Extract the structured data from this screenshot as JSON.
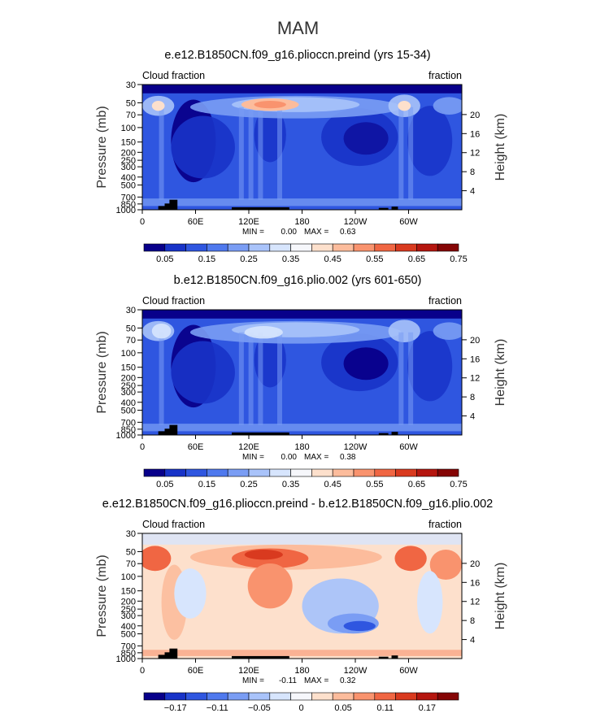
{
  "page_title": "MAM",
  "chart_data": [
    {
      "type": "heatmap",
      "title": "e.e12.B1850CN.f09_g16.plioccn.preind (yrs 15-34)",
      "left_label": "Cloud fraction",
      "right_label": "fraction",
      "xlabel": "",
      "ylabel": "Pressure (mb)",
      "ylabel_right": "Height (km)",
      "x_ticks": [
        "0",
        "60E",
        "120E",
        "180",
        "120W",
        "60W"
      ],
      "y_ticks": [
        "30",
        "50",
        "70",
        "100",
        "150",
        "200",
        "250",
        "300",
        "400",
        "500",
        "700",
        "850",
        "1000"
      ],
      "height_ticks": [
        "20",
        "16",
        "12",
        "8",
        "4"
      ],
      "stats": {
        "min_label": "MIN =",
        "min": "0.00",
        "max_label": "MAX =",
        "max": "0.63"
      },
      "colorbar_labels": [
        "0.05",
        "0.15",
        "0.25",
        "0.35",
        "0.45",
        "0.55",
        "0.65",
        "0.75"
      ],
      "colorbar_colors": [
        "#08008a",
        "#1833c8",
        "#2f56e0",
        "#4f79ee",
        "#7a9df4",
        "#a9c3fa",
        "#d7e5fd",
        "#f6f7fb",
        "#fde0cc",
        "#fcbc9c",
        "#f9936e",
        "#f06643",
        "#d93a1f",
        "#b5160f",
        "#850505"
      ]
    },
    {
      "type": "heatmap",
      "title": "b.e12.B1850CN.f09_g16.plio.002 (yrs 601-650)",
      "left_label": "Cloud fraction",
      "right_label": "fraction",
      "xlabel": "",
      "ylabel": "Pressure (mb)",
      "ylabel_right": "Height (km)",
      "x_ticks": [
        "0",
        "60E",
        "120E",
        "180",
        "120W",
        "60W"
      ],
      "y_ticks": [
        "30",
        "50",
        "70",
        "100",
        "150",
        "200",
        "250",
        "300",
        "400",
        "500",
        "700",
        "850",
        "1000"
      ],
      "height_ticks": [
        "20",
        "16",
        "12",
        "8",
        "4"
      ],
      "stats": {
        "min_label": "MIN =",
        "min": "0.00",
        "max_label": "MAX =",
        "max": "0.38"
      },
      "colorbar_labels": [
        "0.05",
        "0.15",
        "0.25",
        "0.35",
        "0.45",
        "0.55",
        "0.65",
        "0.75"
      ],
      "colorbar_colors": [
        "#08008a",
        "#1833c8",
        "#2f56e0",
        "#4f79ee",
        "#7a9df4",
        "#a9c3fa",
        "#d7e5fd",
        "#f6f7fb",
        "#fde0cc",
        "#fcbc9c",
        "#f9936e",
        "#f06643",
        "#d93a1f",
        "#b5160f",
        "#850505"
      ]
    },
    {
      "type": "heatmap",
      "title": "e.e12.B1850CN.f09_g16.plioccn.preind - b.e12.B1850CN.f09_g16.plio.002",
      "left_label": "Cloud fraction",
      "right_label": "fraction",
      "xlabel": "",
      "ylabel": "Pressure (mb)",
      "ylabel_right": "Height (km)",
      "x_ticks": [
        "0",
        "60E",
        "120E",
        "180",
        "120W",
        "60W"
      ],
      "y_ticks": [
        "30",
        "50",
        "70",
        "100",
        "150",
        "200",
        "250",
        "300",
        "400",
        "500",
        "700",
        "850",
        "1000"
      ],
      "height_ticks": [
        "20",
        "16",
        "12",
        "8",
        "4"
      ],
      "stats": {
        "min_label": "MIN =",
        "min": "-0.11",
        "max_label": "MAX =",
        "max": "0.32"
      },
      "colorbar_labels": [
        "−0.17",
        "−0.11",
        "−0.05",
        "0",
        "0.05",
        "0.11",
        "0.17"
      ],
      "colorbar_colors": [
        "#08008a",
        "#1833c8",
        "#2f56e0",
        "#4f79ee",
        "#7a9df4",
        "#a9c3fa",
        "#d7e5fd",
        "#f6f7fb",
        "#fde0cc",
        "#fcbc9c",
        "#f9936e",
        "#f06643",
        "#d93a1f",
        "#b5160f",
        "#850505"
      ]
    }
  ]
}
